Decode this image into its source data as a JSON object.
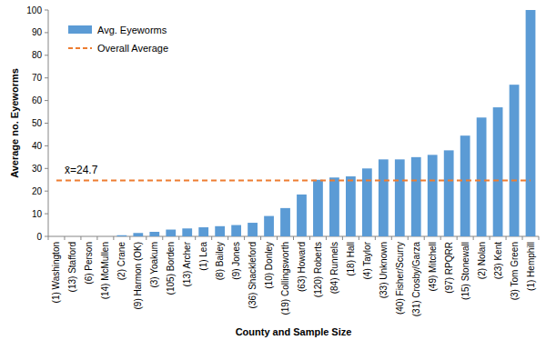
{
  "chart_data": {
    "type": "bar",
    "x_label": "County and Sample Size",
    "y_label": "Average no. Eyeworms",
    "annotations": [
      "x̄=24.7"
    ],
    "categories": [
      "(1) Washington",
      "(13) Stafford",
      "(6) Person",
      "(14) McMullen",
      "(2) Crane",
      "(9) Harmon (OK)",
      "(3) Yoakum",
      "(105) Borden",
      "(13) Archer",
      "(1) Lea",
      "(8) Bailey",
      "(9) Jones",
      "(36) Shackleford",
      "(10) Donley",
      "(19) Collingsworth",
      "(63) Howard",
      "(120) Roberts",
      "(84) Runnels",
      "(18) Hall",
      "(4) Taylor",
      "(33) Unknown",
      "(40) Fisher/Scurry",
      "(31) Crosby/Garza",
      "(49) Mitchell",
      "(97) RPQRR",
      "(15) Stonewall",
      "(2) Nolan",
      "(23) Kent",
      "(3) Tom Green",
      "(1) Hemphill"
    ],
    "series": [
      {
        "name": "Avg. Eyeworms",
        "type": "bar",
        "color": "#5b9bd5",
        "values": [
          0,
          0,
          0,
          0,
          0.5,
          1.5,
          2,
          3,
          3.5,
          4,
          4.5,
          5,
          6,
          9,
          12.5,
          18.5,
          25,
          26,
          26.5,
          30,
          34,
          34,
          35,
          36,
          38,
          44.5,
          52.5,
          57,
          67,
          100
        ]
      },
      {
        "name": "Overall Average",
        "type": "line",
        "line_style": "dashed",
        "color": "#ed7d31",
        "values": [
          24.7,
          24.7,
          24.7,
          24.7,
          24.7,
          24.7,
          24.7,
          24.7,
          24.7,
          24.7,
          24.7,
          24.7,
          24.7,
          24.7,
          24.7,
          24.7,
          24.7,
          24.7,
          24.7,
          24.7,
          24.7,
          24.7,
          24.7,
          24.7,
          24.7,
          24.7,
          24.7,
          24.7,
          24.7,
          24.7
        ]
      }
    ],
    "ylim": [
      0,
      100
    ],
    "yticks": [
      0,
      10,
      20,
      30,
      40,
      50,
      60,
      70,
      80,
      90,
      100
    ],
    "grid": false,
    "legend": "top-left"
  }
}
